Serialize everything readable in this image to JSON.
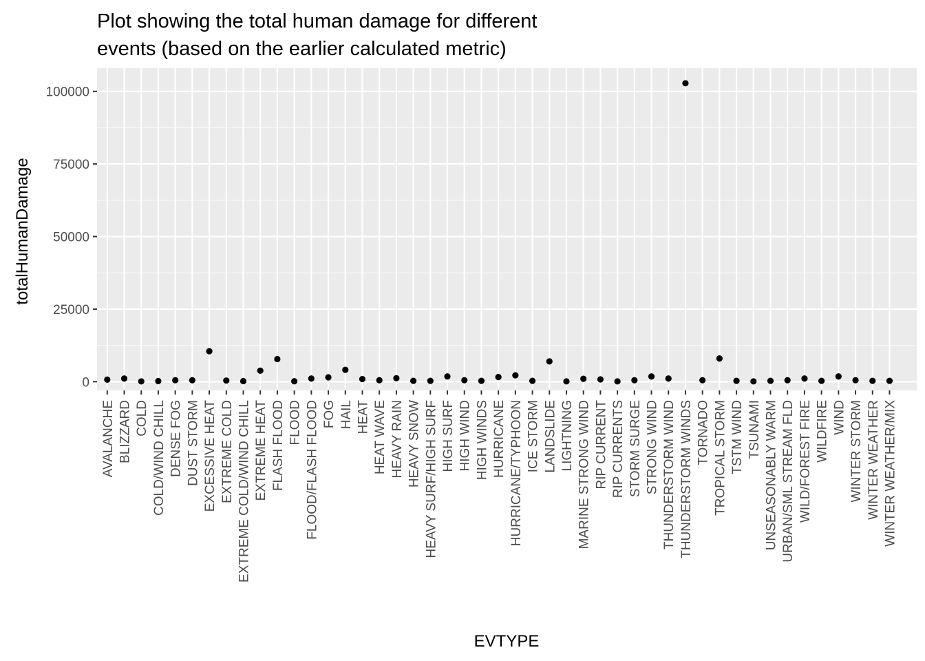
{
  "chart_data": {
    "type": "scatter",
    "title": "Plot showing the total human damage for different events (based on the earlier calculated metric)",
    "title_lines": [
      "Plot showing the total human damage for different",
      "events (based on the earlier calculated metric)"
    ],
    "xlabel": "EVTYPE",
    "ylabel": "totalHumanDamage",
    "ylim": [
      -3000,
      108000
    ],
    "y_ticks": [
      0,
      25000,
      50000,
      75000,
      100000
    ],
    "grid": true,
    "legend": "none",
    "panel_color": "#ebebeb",
    "point_color": "#000000",
    "categories": [
      "AVALANCHE",
      "BLIZZARD",
      "COLD",
      "COLD/WIND CHILL",
      "DENSE FOG",
      "DUST STORM",
      "EXCESSIVE HEAT",
      "EXTREME COLD",
      "EXTREME COLD/WIND CHILL",
      "EXTREME HEAT",
      "FLASH FLOOD",
      "FLOOD",
      "FLOOD/FLASH FLOOD",
      "FOG",
      "HAIL",
      "HEAT",
      "HEAT WAVE",
      "HEAVY RAIN",
      "HEAVY SNOW",
      "HEAVY SURF/HIGH SURF",
      "HIGH SURF",
      "HIGH WIND",
      "HIGH WINDS",
      "HURRICANE",
      "HURRICANE/TYPHOON",
      "ICE STORM",
      "LANDSLIDE",
      "LIGHTNING",
      "MARINE STRONG WIND",
      "RIP CURRENT",
      "RIP CURRENTS",
      "STORM SURGE",
      "STRONG WIND",
      "THUNDERSTORM WIND",
      "THUNDERSTORM WINDS",
      "TORNADO",
      "TROPICAL STORM",
      "TSTM WIND",
      "TSUNAMI",
      "UNSEASONABLY WARM",
      "URBAN/SML STREAM FLD",
      "WILD/FOREST FIRE",
      "WILDFIRE",
      "WIND",
      "WINTER STORM",
      "WINTER WEATHER",
      "WINTER WEATHER/MIX"
    ],
    "values": [
      700,
      1100,
      100,
      200,
      500,
      500,
      10500,
      400,
      200,
      3800,
      7800,
      150,
      1100,
      1500,
      4100,
      900,
      500,
      1200,
      300,
      300,
      1800,
      500,
      300,
      1600,
      2200,
      300,
      7000,
      100,
      1000,
      800,
      100,
      500,
      1800,
      1100,
      102800,
      500,
      8000,
      300,
      100,
      300,
      500,
      1100,
      300,
      1800,
      500,
      300,
      300
    ]
  }
}
